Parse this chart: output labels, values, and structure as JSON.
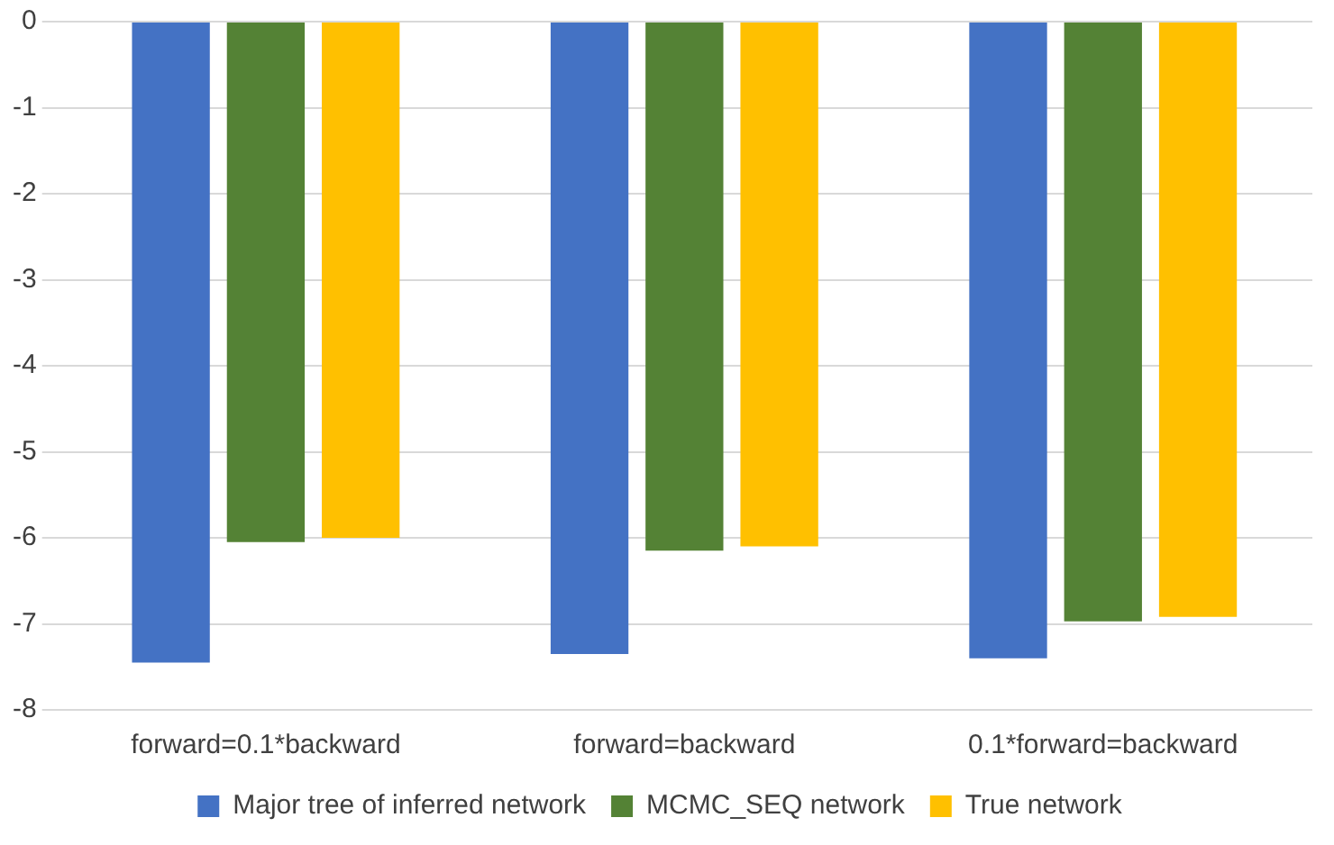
{
  "chart_data": {
    "type": "bar",
    "categories": [
      "forward=0.1*backward",
      "forward=backward",
      "0.1*forward=backward"
    ],
    "series": [
      {
        "name": "Major tree of inferred network",
        "color": "#4472c4",
        "values": [
          -7.45,
          -7.35,
          -7.4
        ]
      },
      {
        "name": "MCMC_SEQ network",
        "color": "#548235",
        "values": [
          -6.05,
          -6.15,
          -6.97
        ]
      },
      {
        "name": "True network",
        "color": "#ffc000",
        "values": [
          -6.0,
          -6.1,
          -6.92
        ]
      }
    ],
    "ylim": [
      -8,
      0
    ],
    "yticks": [
      -8,
      -7,
      -6,
      -5,
      -4,
      -3,
      -2,
      -1,
      0
    ],
    "grid": "y",
    "legend": "bottom"
  }
}
